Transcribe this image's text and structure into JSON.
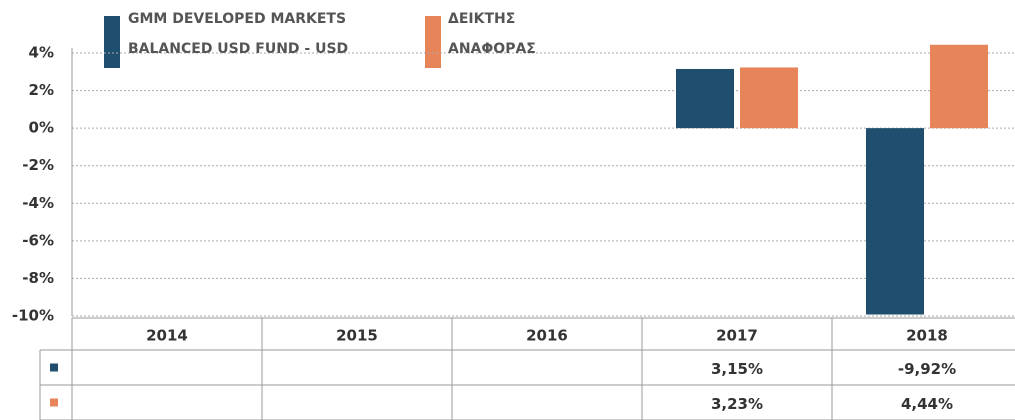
{
  "chart_data": {
    "type": "bar",
    "categories": [
      "2014",
      "2015",
      "2016",
      "2017",
      "2018"
    ],
    "series": [
      {
        "name": "GMM DEVELOPED MARKETS BALANCED USD FUND - USD",
        "color": "#1f4e6e",
        "values": [
          null,
          null,
          null,
          3.15,
          -9.92
        ],
        "value_labels": [
          null,
          null,
          null,
          "3,15%",
          "-9,92%"
        ]
      },
      {
        "name": "ΔΕΙΚΤΗΣ ΑΝΑΦΟΡΑΣ",
        "color": "#e8845a",
        "values": [
          null,
          null,
          null,
          3.23,
          4.44
        ],
        "value_labels": [
          null,
          null,
          null,
          "3,23%",
          "4,44%"
        ]
      }
    ],
    "ylim": [
      -10,
      4
    ],
    "yticks": [
      {
        "value": -10,
        "label": "-10%"
      },
      {
        "value": -8,
        "label": "-8%"
      },
      {
        "value": -6,
        "label": "-6%"
      },
      {
        "value": -4,
        "label": "-4%"
      },
      {
        "value": -2,
        "label": "-2%"
      },
      {
        "value": 0,
        "label": "0%"
      },
      {
        "value": 2,
        "label": "2%"
      },
      {
        "value": 4,
        "label": "4%"
      }
    ],
    "grid": true
  }
}
